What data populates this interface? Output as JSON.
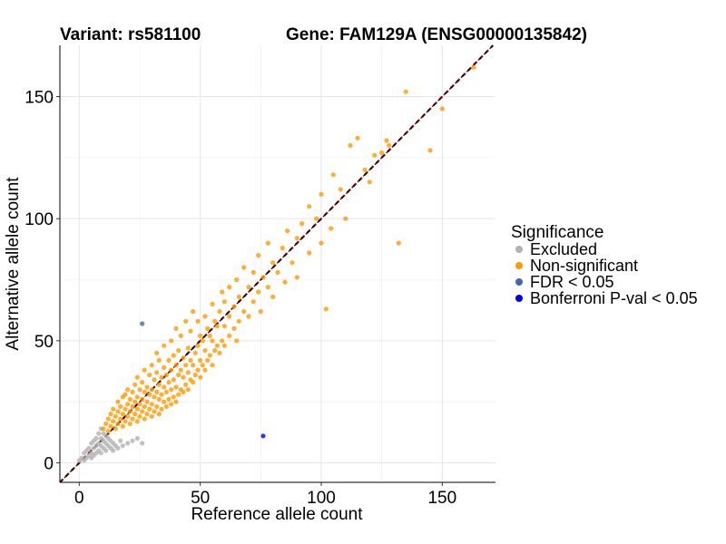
{
  "chart_data": {
    "type": "scatter",
    "title": "",
    "title_left": "Variant: rs581100",
    "title_right": "Gene: FAM129A (ENSG00000135842)",
    "xlabel": "Reference allele count",
    "ylabel": "Alternative allele count",
    "xlim": [
      -8,
      172
    ],
    "ylim": [
      -8,
      171
    ],
    "xticks": [
      0,
      50,
      100,
      150
    ],
    "yticks": [
      0,
      50,
      100,
      150
    ],
    "grid": true,
    "reference_line": {
      "type": "dashed",
      "slope": 1,
      "intercept": 0,
      "colors": [
        "#000000",
        "#8b0000"
      ]
    },
    "legend": {
      "title": "Significance",
      "placement": "right",
      "entries": [
        {
          "label": "Excluded",
          "color": "#b3b3b3"
        },
        {
          "label": "Non-significant",
          "color": "#ff9900"
        },
        {
          "label": "FDR < 0.05",
          "color": "#4169b0"
        },
        {
          "label": "Bonferroni P-val < 0.05",
          "color": "#0000ee"
        }
      ]
    },
    "series": [
      {
        "name": "Excluded",
        "color": "#b3b3b3",
        "points": [
          [
            0,
            1
          ],
          [
            1,
            2
          ],
          [
            2,
            1
          ],
          [
            2,
            4
          ],
          [
            3,
            2
          ],
          [
            3,
            5
          ],
          [
            4,
            3
          ],
          [
            4,
            6
          ],
          [
            5,
            2
          ],
          [
            5,
            4
          ],
          [
            5,
            8
          ],
          [
            6,
            3
          ],
          [
            6,
            6
          ],
          [
            6,
            9
          ],
          [
            7,
            4
          ],
          [
            7,
            7
          ],
          [
            7,
            10
          ],
          [
            8,
            5
          ],
          [
            8,
            8
          ],
          [
            8,
            12
          ],
          [
            9,
            4
          ],
          [
            9,
            7
          ],
          [
            9,
            10
          ],
          [
            9,
            14
          ],
          [
            10,
            6
          ],
          [
            10,
            9
          ],
          [
            10,
            12
          ],
          [
            11,
            5
          ],
          [
            11,
            8
          ],
          [
            11,
            11
          ],
          [
            12,
            7
          ],
          [
            12,
            10
          ],
          [
            13,
            6
          ],
          [
            13,
            9
          ],
          [
            14,
            8
          ],
          [
            14,
            5
          ],
          [
            15,
            7
          ],
          [
            16,
            6
          ],
          [
            17,
            9
          ],
          [
            18,
            7
          ],
          [
            20,
            8
          ],
          [
            22,
            9
          ],
          [
            24,
            10
          ],
          [
            26,
            8
          ]
        ]
      },
      {
        "name": "Non-significant",
        "color": "#ff9900",
        "points": [
          [
            10,
            14
          ],
          [
            11,
            16
          ],
          [
            12,
            18
          ],
          [
            12,
            13
          ],
          [
            13,
            15
          ],
          [
            13,
            20
          ],
          [
            14,
            17
          ],
          [
            14,
            22
          ],
          [
            15,
            14
          ],
          [
            15,
            19
          ],
          [
            16,
            16
          ],
          [
            16,
            21
          ],
          [
            16,
            25
          ],
          [
            17,
            18
          ],
          [
            17,
            23
          ],
          [
            18,
            15
          ],
          [
            18,
            20
          ],
          [
            18,
            27
          ],
          [
            19,
            17
          ],
          [
            19,
            22
          ],
          [
            19,
            28
          ],
          [
            20,
            19
          ],
          [
            20,
            24
          ],
          [
            20,
            30
          ],
          [
            21,
            16
          ],
          [
            21,
            21
          ],
          [
            21,
            26
          ],
          [
            22,
            18
          ],
          [
            22,
            23
          ],
          [
            22,
            29
          ],
          [
            23,
            20
          ],
          [
            23,
            25
          ],
          [
            23,
            32
          ],
          [
            24,
            17
          ],
          [
            24,
            22
          ],
          [
            24,
            27
          ],
          [
            24,
            35
          ],
          [
            25,
            19
          ],
          [
            25,
            24
          ],
          [
            25,
            30
          ],
          [
            26,
            21
          ],
          [
            26,
            26
          ],
          [
            26,
            33
          ],
          [
            27,
            18
          ],
          [
            27,
            23
          ],
          [
            27,
            29
          ],
          [
            27,
            38
          ],
          [
            28,
            20
          ],
          [
            28,
            25
          ],
          [
            28,
            31
          ],
          [
            29,
            22
          ],
          [
            29,
            28
          ],
          [
            29,
            36
          ],
          [
            30,
            19
          ],
          [
            30,
            24
          ],
          [
            30,
            30
          ],
          [
            30,
            40
          ],
          [
            31,
            21
          ],
          [
            31,
            27
          ],
          [
            31,
            34
          ],
          [
            32,
            23
          ],
          [
            32,
            29
          ],
          [
            32,
            37
          ],
          [
            32,
            45
          ],
          [
            33,
            20
          ],
          [
            33,
            26
          ],
          [
            33,
            32
          ],
          [
            33,
            42
          ],
          [
            34,
            22
          ],
          [
            34,
            28
          ],
          [
            34,
            35
          ],
          [
            35,
            25
          ],
          [
            35,
            31
          ],
          [
            35,
            39
          ],
          [
            35,
            48
          ],
          [
            36,
            23
          ],
          [
            36,
            29
          ],
          [
            36,
            36
          ],
          [
            37,
            26
          ],
          [
            37,
            33
          ],
          [
            37,
            42
          ],
          [
            38,
            24
          ],
          [
            38,
            30
          ],
          [
            38,
            38
          ],
          [
            38,
            50
          ],
          [
            39,
            27
          ],
          [
            39,
            34
          ],
          [
            39,
            44
          ],
          [
            40,
            25
          ],
          [
            40,
            31
          ],
          [
            40,
            40
          ],
          [
            40,
            55
          ],
          [
            41,
            28
          ],
          [
            41,
            36
          ],
          [
            41,
            46
          ],
          [
            42,
            30
          ],
          [
            42,
            38
          ],
          [
            42,
            52
          ],
          [
            43,
            29
          ],
          [
            43,
            35
          ],
          [
            43,
            43
          ],
          [
            44,
            32
          ],
          [
            44,
            40
          ],
          [
            44,
            58
          ],
          [
            45,
            30
          ],
          [
            45,
            37
          ],
          [
            45,
            47
          ],
          [
            46,
            34
          ],
          [
            46,
            42
          ],
          [
            46,
            54
          ],
          [
            47,
            33
          ],
          [
            47,
            40
          ],
          [
            47,
            62
          ],
          [
            48,
            36
          ],
          [
            48,
            45
          ],
          [
            49,
            38
          ],
          [
            49,
            48
          ],
          [
            49,
            58
          ],
          [
            50,
            35
          ],
          [
            50,
            42
          ],
          [
            50,
            52
          ],
          [
            51,
            40
          ],
          [
            51,
            50
          ],
          [
            52,
            38
          ],
          [
            52,
            46
          ],
          [
            52,
            60
          ],
          [
            53,
            42
          ],
          [
            53,
            55
          ],
          [
            54,
            44
          ],
          [
            54,
            52
          ],
          [
            55,
            40
          ],
          [
            55,
            50
          ],
          [
            55,
            65
          ],
          [
            56,
            46
          ],
          [
            56,
            58
          ],
          [
            57,
            48
          ],
          [
            57,
            56
          ],
          [
            58,
            45
          ],
          [
            58,
            62
          ],
          [
            59,
            50
          ],
          [
            59,
            70
          ],
          [
            60,
            48
          ],
          [
            60,
            56
          ],
          [
            60,
            66
          ],
          [
            62,
            52
          ],
          [
            62,
            60
          ],
          [
            62,
            72
          ],
          [
            64,
            55
          ],
          [
            64,
            64
          ],
          [
            65,
            50
          ],
          [
            65,
            75
          ],
          [
            66,
            58
          ],
          [
            66,
            68
          ],
          [
            68,
            62
          ],
          [
            68,
            80
          ],
          [
            70,
            60
          ],
          [
            70,
            72
          ],
          [
            72,
            66
          ],
          [
            72,
            78
          ],
          [
            74,
            70
          ],
          [
            74,
            85
          ],
          [
            75,
            62
          ],
          [
            76,
            76
          ],
          [
            78,
            72
          ],
          [
            78,
            90
          ],
          [
            80,
            68
          ],
          [
            80,
            82
          ],
          [
            82,
            78
          ],
          [
            84,
            88
          ],
          [
            85,
            74
          ],
          [
            86,
            95
          ],
          [
            88,
            82
          ],
          [
            90,
            92
          ],
          [
            90,
            76
          ],
          [
            92,
            98
          ],
          [
            95,
            86
          ],
          [
            95,
            105
          ],
          [
            98,
            100
          ],
          [
            100,
            90
          ],
          [
            100,
            110
          ],
          [
            102,
            63
          ],
          [
            104,
            96
          ],
          [
            105,
            118
          ],
          [
            108,
            112
          ],
          [
            110,
            100
          ],
          [
            112,
            130
          ],
          [
            115,
            133
          ],
          [
            118,
            120
          ],
          [
            120,
            115
          ],
          [
            122,
            126
          ],
          [
            125,
            127
          ],
          [
            127,
            132
          ],
          [
            128,
            130
          ],
          [
            132,
            90
          ],
          [
            135,
            152
          ],
          [
            145,
            128
          ],
          [
            150,
            145
          ],
          [
            163,
            162
          ]
        ]
      },
      {
        "name": "FDR < 0.05",
        "color": "#4169b0",
        "points": [
          [
            26,
            57
          ]
        ]
      },
      {
        "name": "Bonferroni P-val < 0.05",
        "color": "#0000ee",
        "points": [
          [
            76,
            11
          ]
        ]
      }
    ]
  }
}
